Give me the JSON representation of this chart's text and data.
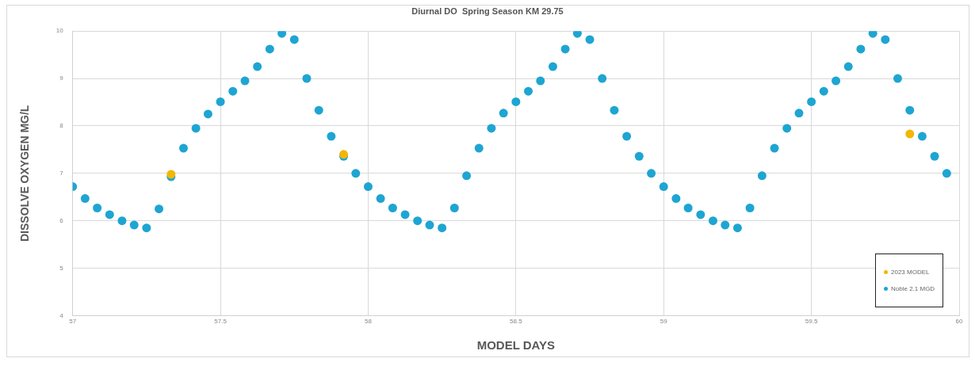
{
  "chart_data": {
    "type": "scatter",
    "title": "Diurnal DO  Spring Season KM 29.75",
    "xlabel": "MODEL DAYS",
    "ylabel": "DISSOLVE OXYGEN MG/L",
    "xlim": [
      57,
      60
    ],
    "xticks": [
      57,
      57.5,
      58,
      58.5,
      59,
      59.5,
      60
    ],
    "ylim": [
      4,
      10
    ],
    "yticks": [
      4,
      5,
      6,
      7,
      8,
      9,
      10
    ],
    "grid": true,
    "legend": "bottom right",
    "marker": "circle",
    "series": [
      {
        "name": "2023 MODEL",
        "color": "#f2b705",
        "x": [
          57.333,
          57.917,
          59.833
        ],
        "values": [
          6.98,
          7.4,
          7.83
        ]
      },
      {
        "name": "Noble 2.1 MGD",
        "color": "#1ea5d2",
        "x": [
          57,
          57.042,
          57.083,
          57.125,
          57.167,
          57.208,
          57.25,
          57.292,
          57.333,
          57.375,
          57.417,
          57.458,
          57.5,
          57.542,
          57.583,
          57.625,
          57.667,
          57.708,
          57.75,
          57.792,
          57.833,
          57.875,
          57.917,
          57.958,
          58,
          58.042,
          58.083,
          58.125,
          58.167,
          58.208,
          58.25,
          58.292,
          58.333,
          58.375,
          58.417,
          58.458,
          58.5,
          58.542,
          58.583,
          58.625,
          58.667,
          58.708,
          58.75,
          58.792,
          58.833,
          58.875,
          58.917,
          58.958,
          59,
          59.042,
          59.083,
          59.125,
          59.167,
          59.208,
          59.25,
          59.292,
          59.333,
          59.375,
          59.417,
          59.458,
          59.5,
          59.542,
          59.583,
          59.625,
          59.667,
          59.708,
          59.75,
          59.792,
          59.833,
          59.875,
          59.917,
          59.958
        ],
        "values": [
          6.72,
          6.47,
          6.27,
          6.13,
          6.0,
          5.91,
          5.85,
          6.25,
          6.93,
          7.53,
          7.95,
          8.25,
          8.51,
          8.73,
          8.95,
          9.25,
          9.62,
          9.95,
          9.82,
          9.0,
          8.33,
          7.78,
          7.36,
          7.0,
          6.72,
          6.47,
          6.27,
          6.13,
          6.0,
          5.91,
          5.85,
          6.27,
          6.95,
          7.53,
          7.95,
          8.27,
          8.51,
          8.73,
          8.95,
          9.25,
          9.62,
          9.95,
          9.82,
          9.0,
          8.33,
          7.78,
          7.36,
          7.0,
          6.72,
          6.47,
          6.27,
          6.13,
          6.0,
          5.91,
          5.85,
          6.27,
          6.95,
          7.53,
          7.95,
          8.27,
          8.51,
          8.73,
          8.95,
          9.25,
          9.62,
          9.95,
          9.82,
          9.0,
          8.33,
          7.78,
          7.36,
          7.0
        ]
      }
    ]
  }
}
